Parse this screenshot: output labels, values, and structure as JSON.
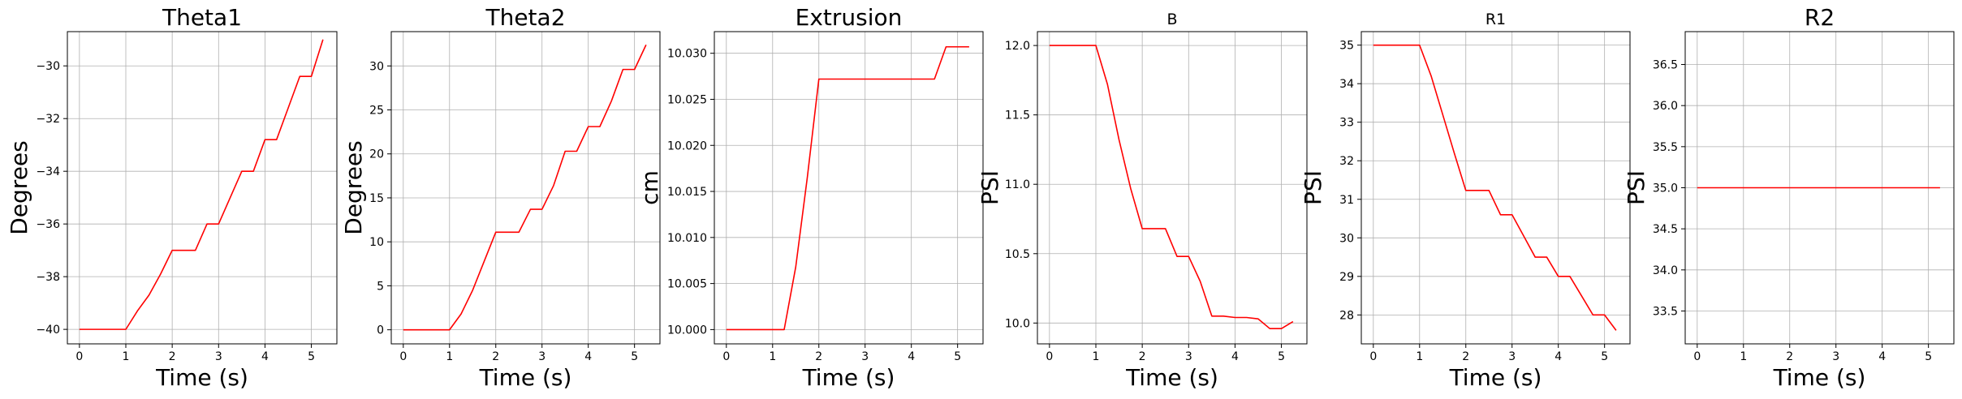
{
  "chart_data": [
    {
      "type": "line",
      "title": "Theta1",
      "xlabel": "Time (s)",
      "ylabel": "Degrees",
      "xlim": [
        -0.26,
        5.55
      ],
      "ylim": [
        -40.55,
        -28.7
      ],
      "xticks": [
        0,
        1,
        2,
        3,
        4,
        5
      ],
      "yticks": [
        -40,
        -38,
        -36,
        -34,
        -32,
        -30
      ],
      "ytick_labels": [
        "−40",
        "−38",
        "−36",
        "−34",
        "−32",
        "−30"
      ],
      "grid": true,
      "color": "#ff0000",
      "x": [
        0,
        1.0,
        1.25,
        1.5,
        1.75,
        2.0,
        2.5,
        2.75,
        3.0,
        3.25,
        3.5,
        3.75,
        4.0,
        4.25,
        4.5,
        4.75,
        5.0,
        5.25
      ],
      "y": [
        -40.0,
        -40.0,
        -39.3,
        -38.7,
        -37.9,
        -37.0,
        -37.0,
        -36.0,
        -36.0,
        -35.0,
        -34.0,
        -34.0,
        -32.8,
        -32.8,
        -31.6,
        -30.4,
        -30.4,
        -29.0
      ]
    },
    {
      "type": "line",
      "title": "Theta2",
      "xlabel": "Time (s)",
      "ylabel": "Degrees",
      "xlim": [
        -0.26,
        5.55
      ],
      "ylim": [
        -1.6,
        33.9
      ],
      "xticks": [
        0,
        1,
        2,
        3,
        4,
        5
      ],
      "yticks": [
        0,
        5,
        10,
        15,
        20,
        25,
        30
      ],
      "ytick_labels": [
        "0",
        "5",
        "10",
        "15",
        "20",
        "25",
        "30"
      ],
      "grid": true,
      "color": "#ff0000",
      "x": [
        0,
        1.0,
        1.25,
        1.5,
        1.75,
        2.0,
        2.5,
        2.75,
        3.0,
        3.25,
        3.5,
        3.75,
        4.0,
        4.25,
        4.5,
        4.75,
        5.0,
        5.25
      ],
      "y": [
        0,
        0,
        1.8,
        4.5,
        7.8,
        11.1,
        11.1,
        13.7,
        13.7,
        16.4,
        20.3,
        20.3,
        23.1,
        23.1,
        26.0,
        29.6,
        29.6,
        32.4
      ]
    },
    {
      "type": "line",
      "title": "Extrusion",
      "xlabel": "Time (s)",
      "ylabel": "cm",
      "xlim": [
        -0.26,
        5.55
      ],
      "ylim": [
        9.99845,
        10.03235
      ],
      "xticks": [
        0,
        1,
        2,
        3,
        4,
        5
      ],
      "yticks": [
        10.0,
        10.005,
        10.01,
        10.015,
        10.02,
        10.025,
        10.03
      ],
      "ytick_labels": [
        "10.000",
        "10.005",
        "10.010",
        "10.015",
        "10.020",
        "10.025",
        "10.030"
      ],
      "grid": true,
      "color": "#ff0000",
      "x": [
        0,
        1.25,
        1.5,
        1.75,
        2.0,
        4.5,
        4.75,
        5.0,
        5.25
      ],
      "y": [
        10.0,
        10.0,
        10.0068,
        10.0165,
        10.0272,
        10.0272,
        10.0307,
        10.0307,
        10.0307
      ]
    },
    {
      "type": "line",
      "title": "B",
      "xlabel": "Time (s)",
      "ylabel": "PSI",
      "xlim": [
        -0.26,
        5.55
      ],
      "ylim": [
        9.85,
        12.1
      ],
      "xticks": [
        0,
        1,
        2,
        3,
        4,
        5
      ],
      "yticks": [
        10.0,
        10.5,
        11.0,
        11.5,
        12.0
      ],
      "ytick_labels": [
        "10.0",
        "10.5",
        "11.0",
        "11.5",
        "12.0"
      ],
      "grid": true,
      "color": "#ff0000",
      "x": [
        0,
        1.0,
        1.25,
        1.5,
        1.75,
        2.0,
        2.5,
        2.75,
        3.0,
        3.25,
        3.5,
        3.75,
        4.0,
        4.25,
        4.5,
        4.75,
        5.0,
        5.25
      ],
      "y": [
        12.0,
        12.0,
        11.72,
        11.32,
        10.97,
        10.68,
        10.68,
        10.48,
        10.48,
        10.3,
        10.05,
        10.05,
        10.04,
        10.04,
        10.03,
        9.96,
        9.96,
        10.01
      ]
    },
    {
      "type": "line",
      "title": "R1",
      "xlabel": "Time (s)",
      "ylabel": "PSI",
      "xlim": [
        -0.26,
        5.55
      ],
      "ylim": [
        27.25,
        35.35
      ],
      "xticks": [
        0,
        1,
        2,
        3,
        4,
        5
      ],
      "yticks": [
        28,
        29,
        30,
        31,
        32,
        33,
        34,
        35
      ],
      "ytick_labels": [
        "28",
        "29",
        "30",
        "31",
        "32",
        "33",
        "34",
        "35"
      ],
      "grid": true,
      "color": "#ff0000",
      "x": [
        0,
        1.0,
        1.25,
        1.5,
        1.75,
        2.0,
        2.5,
        2.75,
        3.0,
        3.25,
        3.5,
        3.75,
        4.0,
        4.25,
        4.5,
        4.75,
        5.0,
        5.25
      ],
      "y": [
        35.0,
        35.0,
        34.2,
        33.2,
        32.2,
        31.23,
        31.23,
        30.6,
        30.6,
        30.05,
        29.5,
        29.5,
        29.0,
        29.0,
        28.5,
        28.0,
        28.0,
        27.6
      ]
    },
    {
      "type": "line",
      "title": "R2",
      "xlabel": "Time (s)",
      "ylabel": "PSI",
      "xlim": [
        -0.26,
        5.55
      ],
      "ylim": [
        33.1,
        36.9
      ],
      "xticks": [
        0,
        1,
        2,
        3,
        4,
        5
      ],
      "yticks": [
        33.5,
        34.0,
        34.5,
        35.0,
        35.5,
        36.0,
        36.5
      ],
      "ytick_labels": [
        "33.5",
        "34.0",
        "34.5",
        "35.0",
        "35.5",
        "36.0",
        "36.5"
      ],
      "grid": true,
      "color": "#ff0000",
      "x": [
        0,
        5.25
      ],
      "y": [
        35.0,
        35.0
      ]
    }
  ]
}
